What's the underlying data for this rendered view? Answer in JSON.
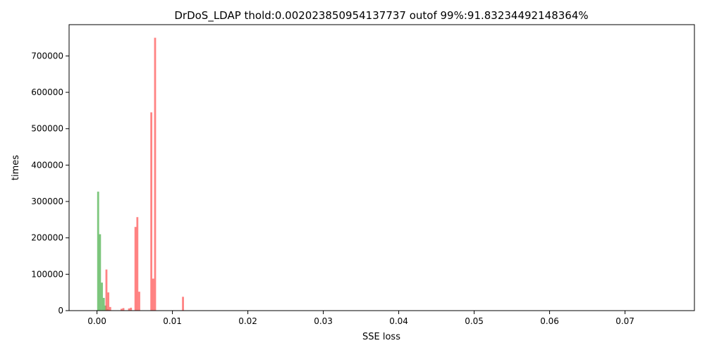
{
  "chart_data": {
    "type": "bar",
    "title": "DrDoS_LDAP thold:0.002023850954137737 outof 99%:91.83234492148364%",
    "xlabel": "SSE loss",
    "ylabel": "times",
    "xlim": [
      -0.0037,
      0.0792
    ],
    "ylim": [
      0,
      786000
    ],
    "x_ticks": [
      0.0,
      0.01,
      0.02,
      0.03,
      0.04,
      0.05,
      0.06,
      0.07
    ],
    "x_tick_labels": [
      "0.00",
      "0.01",
      "0.02",
      "0.03",
      "0.04",
      "0.05",
      "0.06",
      "0.07"
    ],
    "y_ticks": [
      0,
      100000,
      200000,
      300000,
      400000,
      500000,
      600000,
      700000
    ],
    "y_tick_labels": [
      "0",
      "100000",
      "200000",
      "300000",
      "400000",
      "500000",
      "600000",
      "700000"
    ],
    "grid": false,
    "series": [
      {
        "name": "green",
        "color": "#5cb85c",
        "opacity": 0.8,
        "bin_width": 0.00026,
        "x": [
          0.00015,
          0.0004,
          0.00065,
          0.0009,
          0.00115,
          0.0014,
          0.00165
        ],
        "values": [
          327000,
          210000,
          77000,
          35000,
          14000,
          4000,
          1500
        ]
      },
      {
        "name": "red",
        "color": "#ff5a5a",
        "opacity": 0.75,
        "bin_width": 0.00026,
        "x": [
          0.00125,
          0.0015,
          0.00175,
          0.00325,
          0.0035,
          0.00425,
          0.0045,
          0.0051,
          0.00535,
          0.0056,
          0.0072,
          0.00745,
          0.0077,
          0.0114
        ],
        "values": [
          113000,
          50000,
          10000,
          5000,
          7000,
          6000,
          8000,
          230000,
          257000,
          52000,
          545000,
          88000,
          750000,
          38000
        ]
      }
    ]
  }
}
